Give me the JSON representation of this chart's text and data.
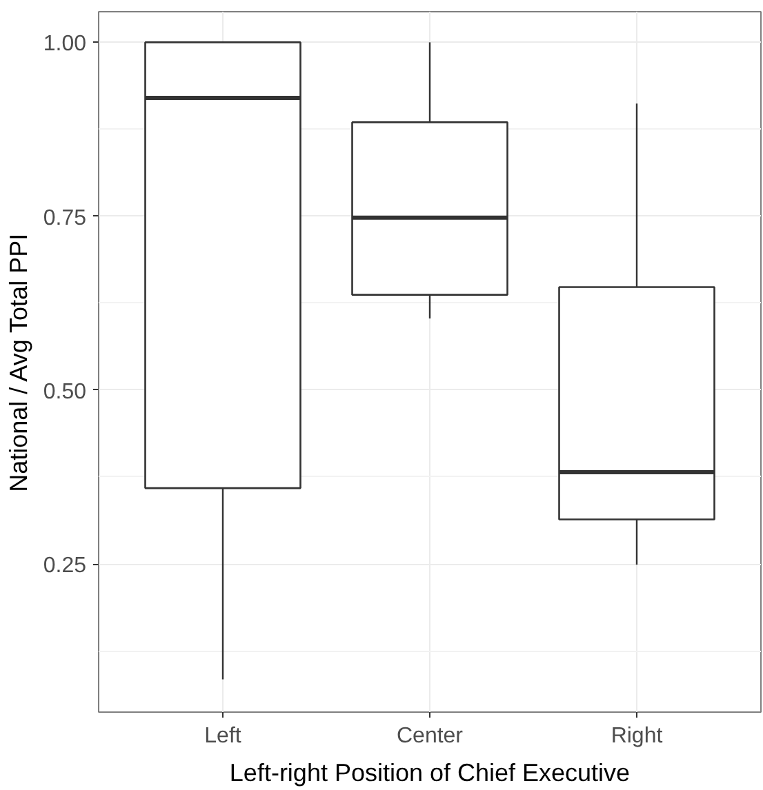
{
  "chart_data": {
    "type": "box",
    "xlabel": "Left-right Position of Chief Executive",
    "ylabel": "National / Avg Total PPI",
    "categories": [
      "Left",
      "Center",
      "Right"
    ],
    "boxes": [
      {
        "low": 0.084,
        "q1": 0.359,
        "median": 0.92,
        "q3": 1.0,
        "high": 1.0
      },
      {
        "low": 0.603,
        "q1": 0.637,
        "median": 0.748,
        "q3": 0.885,
        "high": 1.0
      },
      {
        "low": 0.249,
        "q1": 0.314,
        "median": 0.382,
        "q3": 0.648,
        "high": 0.912
      }
    ],
    "ylim": [
      0.037,
      1.044
    ],
    "yticks": [
      {
        "value": 0.25,
        "label": "0.25"
      },
      {
        "value": 0.5,
        "label": "0.50"
      },
      {
        "value": 0.75,
        "label": "0.75"
      },
      {
        "value": 1.0,
        "label": "1.00"
      }
    ],
    "grid": true
  }
}
